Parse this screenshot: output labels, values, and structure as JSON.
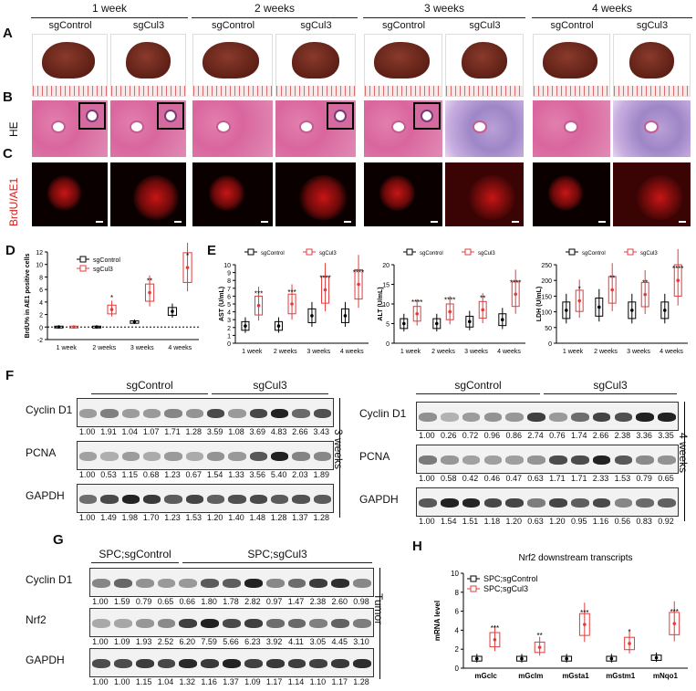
{
  "panels": {
    "A": "A",
    "B": "B",
    "C": "C",
    "D": "D",
    "E": "E",
    "F": "F",
    "G": "G",
    "H": "H"
  },
  "timepoints": [
    "1 week",
    "2 weeks",
    "3 weeks",
    "4 weeks"
  ],
  "groups": [
    "sgControl",
    "sgCul3"
  ],
  "row_labels": {
    "he": "HE",
    "if": "BrdU/AE1"
  },
  "chart_data": [
    {
      "type": "bar",
      "panel": "D",
      "ylabel": "BrdU% in AE1 positive cells",
      "categories": [
        "1 week",
        "2 weeks",
        "3 weeks",
        "4 weeks"
      ],
      "yticks": [
        -2,
        0,
        2,
        4,
        6,
        8,
        10,
        12
      ],
      "ylim": [
        -2,
        12
      ],
      "series": [
        {
          "name": "sgControl",
          "color": "#000000",
          "values": [
            0,
            0,
            0.8,
            2.5
          ]
        },
        {
          "name": "sgCul3",
          "color": "#e03c3c",
          "values": [
            0,
            2.8,
            5.5,
            9.5
          ]
        }
      ],
      "significance": [
        "",
        "*",
        "**",
        "*"
      ]
    },
    {
      "type": "bar",
      "panel": "E1",
      "ylabel": "AST (U/mL)",
      "categories": [
        "1 week",
        "2 weeks",
        "3 weeks",
        "4 weeks"
      ],
      "yticks": [
        0,
        1,
        2,
        3,
        4,
        5,
        6,
        7,
        8,
        9,
        10
      ],
      "ylim": [
        0,
        10
      ],
      "series": [
        {
          "name": "sgControl",
          "color": "#000000",
          "values": [
            2.2,
            2.2,
            3.5,
            3.5
          ]
        },
        {
          "name": "sgCul3",
          "color": "#e03c3c",
          "values": [
            4.8,
            5,
            6.8,
            7.5
          ]
        }
      ],
      "significance": [
        "***",
        "***",
        "****",
        "****"
      ]
    },
    {
      "type": "bar",
      "panel": "E2",
      "ylabel": "ALT (U/mL)",
      "categories": [
        "1 week",
        "2 weeks",
        "3 weeks",
        "4 weeks"
      ],
      "yticks": [
        0,
        5,
        10,
        15,
        20
      ],
      "ylim": [
        0,
        20
      ],
      "series": [
        {
          "name": "sgControl",
          "color": "#000000",
          "values": [
            5,
            5,
            5.5,
            6
          ]
        },
        {
          "name": "sgCul3",
          "color": "#e03c3c",
          "values": [
            7.5,
            8,
            8.5,
            12.5
          ]
        }
      ],
      "significance": [
        "****",
        "****",
        "**",
        "****"
      ]
    },
    {
      "type": "bar",
      "panel": "E3",
      "ylabel": "LDH (U/mL)",
      "categories": [
        "1 week",
        "2 weeks",
        "3 weeks",
        "4 weeks"
      ],
      "yticks": [
        0,
        50,
        100,
        150,
        200,
        250
      ],
      "ylim": [
        0,
        250
      ],
      "series": [
        {
          "name": "sgControl",
          "color": "#000000",
          "values": [
            105,
            115,
            105,
            105
          ]
        },
        {
          "name": "sgCul3",
          "color": "#e03c3c",
          "values": [
            135,
            170,
            155,
            200
          ]
        }
      ],
      "significance": [
        "*",
        "**",
        "**",
        "****"
      ]
    },
    {
      "type": "bar",
      "panel": "H",
      "title": "Nrf2 downstream transcripts",
      "ylabel": "mRNA level",
      "categories": [
        "mGclc",
        "mGclm",
        "mGsta1",
        "mGstm1",
        "mNqo1"
      ],
      "yticks": [
        0,
        2,
        4,
        6,
        8,
        10
      ],
      "ylim": [
        0,
        10
      ],
      "series": [
        {
          "name": "SPC;sgControl",
          "color": "#000000",
          "values": [
            1,
            1,
            1,
            1,
            1.1
          ]
        },
        {
          "name": "SPC;sgCul3",
          "color": "#e03c3c",
          "values": [
            3,
            2.2,
            4.6,
            2.6,
            4.7
          ]
        }
      ],
      "significance": [
        "***",
        "**",
        "***",
        "*",
        "***"
      ]
    }
  ],
  "blots": {
    "F_left": {
      "header": {
        "ctrl": "sgControl",
        "cul3": "sgCul3"
      },
      "side": "3 weeks",
      "rows": [
        {
          "name": "Cyclin D1",
          "quant": [
            "1.00",
            "1.91",
            "1.04",
            "1.07",
            "1.71",
            "1.28",
            "3.59",
            "1.08",
            "3.69",
            "4.83",
            "2.66",
            "3.43"
          ]
        },
        {
          "name": "PCNA",
          "quant": [
            "1.00",
            "0.53",
            "1.15",
            "0.68",
            "1.23",
            "0.67",
            "1.54",
            "1.33",
            "3.56",
            "5.40",
            "2.03",
            "1.89"
          ]
        },
        {
          "name": "GAPDH",
          "quant": [
            "1.00",
            "1.49",
            "1.98",
            "1.70",
            "1.23",
            "1.53",
            "1.20",
            "1.40",
            "1.48",
            "1.28",
            "1.37",
            "1.28"
          ]
        }
      ]
    },
    "F_right": {
      "header": {
        "ctrl": "sgControl",
        "cul3": "sgCul3"
      },
      "side": "4 weeks",
      "rows": [
        {
          "name": "Cyclin D1",
          "quant": [
            "1.00",
            "0.26",
            "0.72",
            "0.96",
            "0.86",
            "2.74",
            "0.76",
            "1.74",
            "2.66",
            "2.38",
            "3.36",
            "3.35"
          ]
        },
        {
          "name": "PCNA",
          "quant": [
            "1.00",
            "0.58",
            "0.42",
            "0.46",
            "0.47",
            "0.63",
            "1.71",
            "1.71",
            "2.33",
            "1.53",
            "0.79",
            "0.65"
          ]
        },
        {
          "name": "GAPDH",
          "quant": [
            "1.00",
            "1.54",
            "1.51",
            "1.18",
            "1.20",
            "0.63",
            "1.20",
            "0.95",
            "1.16",
            "0.56",
            "0.83",
            "0.92"
          ]
        }
      ]
    },
    "G": {
      "header": {
        "ctrl": "SPC;sgControl",
        "cul3": "SPC;sgCul3"
      },
      "side": "Tumor",
      "rows": [
        {
          "name": "Cyclin D1",
          "quant": [
            "1.00",
            "1.59",
            "0.79",
            "0.65",
            "0.66",
            "1.80",
            "1.78",
            "2.82",
            "0.97",
            "1.47",
            "2.38",
            "2.60",
            "0.98"
          ]
        },
        {
          "name": "Nrf2",
          "quant": [
            "1.00",
            "1.09",
            "1.93",
            "2.52",
            "6.20",
            "7.59",
            "5.66",
            "6.23",
            "3.92",
            "4.11",
            "3.05",
            "4.45",
            "3.10"
          ]
        },
        {
          "name": "GAPDH",
          "quant": [
            "1.00",
            "1.00",
            "1.15",
            "1.04",
            "1.32",
            "1.16",
            "1.37",
            "1.09",
            "1.17",
            "1.14",
            "1.10",
            "1.17",
            "1.28"
          ]
        }
      ]
    }
  }
}
